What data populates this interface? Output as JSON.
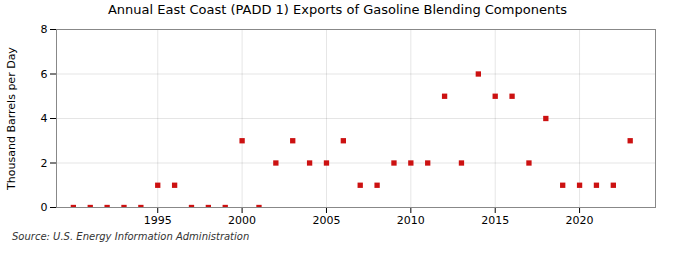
{
  "chart_data": {
    "type": "scatter",
    "title": "Annual East Coast (PADD 1) Exports of Gasoline Blending Components",
    "ylabel": "Thousand Barrels per Day",
    "source": "Source: U.S. Energy Information Administration",
    "x": [
      1990,
      1991,
      1992,
      1993,
      1994,
      1995,
      1996,
      1997,
      1998,
      1999,
      2000,
      2001,
      2002,
      2003,
      2004,
      2005,
      2006,
      2007,
      2008,
      2009,
      2010,
      2011,
      2012,
      2013,
      2014,
      2015,
      2016,
      2017,
      2018,
      2019,
      2020,
      2021,
      2022,
      2023
    ],
    "values": [
      0,
      0,
      0,
      0,
      0,
      1,
      1,
      0,
      0,
      0,
      3,
      0,
      2,
      3,
      2,
      2,
      3,
      1,
      1,
      2,
      2,
      2,
      5,
      2,
      6,
      5,
      5,
      2,
      4,
      1,
      1,
      1,
      1,
      3
    ],
    "color": "#cc1111",
    "marker": "square",
    "xlim": [
      1989,
      2024.5
    ],
    "xticks": [
      1995,
      2000,
      2005,
      2010,
      2015,
      2020
    ],
    "ylim": [
      0,
      8
    ],
    "yticks": [
      0,
      2,
      4,
      6,
      8
    ],
    "grid": true
  }
}
